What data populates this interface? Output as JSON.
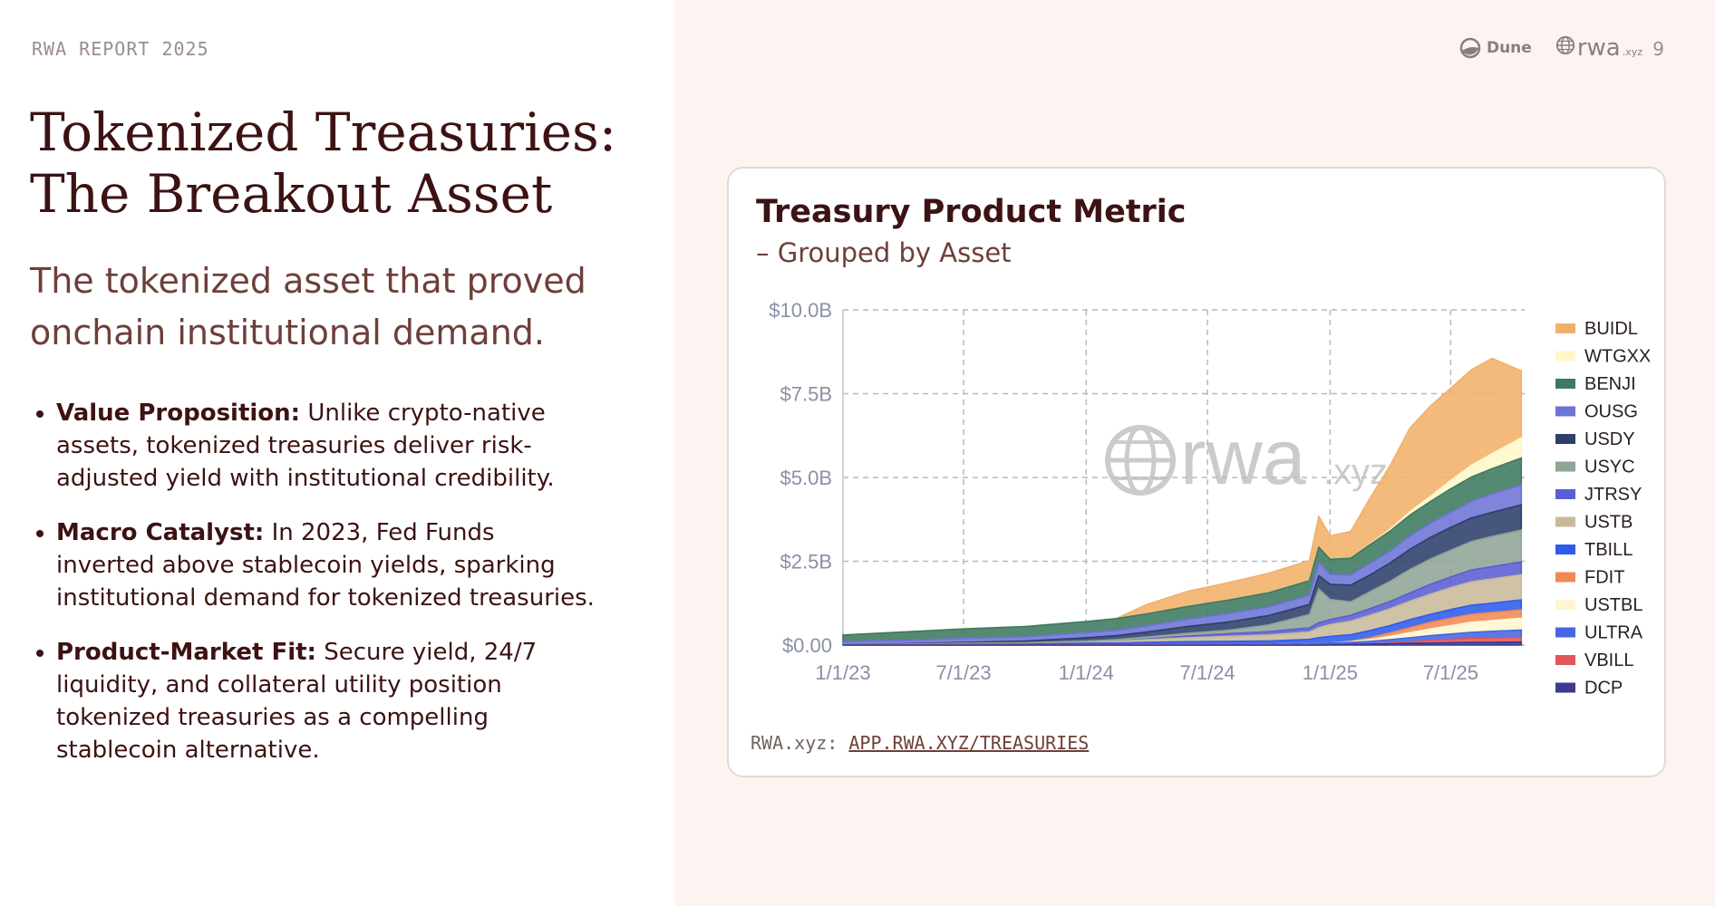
{
  "header": {
    "report_label": "RWA REPORT 2025",
    "page_number": "9",
    "dune_label": "Dune",
    "rwa_label": "rwa",
    "rwa_suffix": ".xyz"
  },
  "title_line1": "Tokenized Treasuries:",
  "title_line2": "The Breakout Asset",
  "subtitle": "The tokenized asset that proved onchain institutional demand.",
  "bullets": [
    {
      "bold": "Value Proposition:",
      "text": " Unlike crypto-native assets, tokenized treasuries deliver risk-adjusted yield with institutional credibility."
    },
    {
      "bold": "Macro Catalyst:",
      "text": " In 2023, Fed Funds inverted above stablecoin yields, sparking institutional demand for tokenized treasuries."
    },
    {
      "bold": "Product-Market Fit:",
      "text": " Secure yield, 24/7 liquidity, and collateral utility position tokenized treasuries as a compelling stablecoin alternative."
    }
  ],
  "source": {
    "prefix": "RWA.xyz:",
    "link_text": "APP.RWA.XYZ/TREASURIES"
  },
  "watermark": {
    "main": "rwa",
    "suffix": ".xyz"
  },
  "chart_data": {
    "type": "area",
    "stacked": true,
    "title": "Treasury Product Metric",
    "subtitle": "– Grouped by Asset",
    "xlabel": "",
    "ylabel": "",
    "x": [
      "2023-01-01",
      "2023-04-01",
      "2023-07-01",
      "2023-10-01",
      "2024-01-01",
      "2024-02-15",
      "2024-04-01",
      "2024-06-01",
      "2024-08-01",
      "2024-10-01",
      "2024-12-01",
      "2024-12-15",
      "2025-01-01",
      "2025-02-01",
      "2025-03-01",
      "2025-04-01",
      "2025-05-01",
      "2025-06-01",
      "2025-07-01",
      "2025-08-01",
      "2025-09-01",
      "2025-10-15"
    ],
    "xticks": [
      "1/1/23",
      "7/1/23",
      "1/1/24",
      "7/1/24",
      "1/1/25",
      "7/1/25"
    ],
    "yticks": [
      "$0.00",
      "$2.5B",
      "$5.0B",
      "$7.5B",
      "$10.0B"
    ],
    "ylim": [
      0,
      10
    ],
    "yunit": "$B",
    "grid": true,
    "legend_position": "right",
    "series": [
      {
        "name": "DCP",
        "color": "#3b3a8f",
        "values": [
          0,
          0,
          0,
          0,
          0,
          0,
          0,
          0,
          0,
          0,
          0,
          0,
          0.01,
          0.02,
          0.03,
          0.04,
          0.05,
          0.06,
          0.07,
          0.08,
          0.08,
          0.09
        ]
      },
      {
        "name": "VBILL",
        "color": "#e0565b",
        "values": [
          0,
          0,
          0,
          0,
          0,
          0,
          0,
          0,
          0,
          0,
          0,
          0,
          0,
          0,
          0,
          0.02,
          0.05,
          0.08,
          0.1,
          0.12,
          0.13,
          0.14
        ]
      },
      {
        "name": "ULTRA",
        "color": "#4466e6",
        "values": [
          0,
          0,
          0,
          0,
          0,
          0,
          0,
          0,
          0,
          0,
          0.03,
          0.04,
          0.05,
          0.06,
          0.08,
          0.1,
          0.12,
          0.14,
          0.16,
          0.18,
          0.2,
          0.22
        ]
      },
      {
        "name": "USTBL",
        "color": "#fff6cf",
        "values": [
          0,
          0,
          0,
          0,
          0,
          0,
          0,
          0,
          0,
          0,
          0,
          0,
          0,
          0.02,
          0.05,
          0.1,
          0.15,
          0.2,
          0.25,
          0.3,
          0.32,
          0.35
        ]
      },
      {
        "name": "FDIT",
        "color": "#f08a55",
        "values": [
          0,
          0,
          0,
          0,
          0,
          0,
          0,
          0,
          0,
          0,
          0,
          0,
          0,
          0.01,
          0.05,
          0.1,
          0.15,
          0.2,
          0.22,
          0.24,
          0.24,
          0.25
        ]
      },
      {
        "name": "TBILL",
        "color": "#2f5bea",
        "values": [
          0.01,
          0.01,
          0.02,
          0.03,
          0.05,
          0.06,
          0.08,
          0.1,
          0.11,
          0.12,
          0.14,
          0.18,
          0.2,
          0.2,
          0.22,
          0.22,
          0.24,
          0.24,
          0.26,
          0.27,
          0.28,
          0.3
        ]
      },
      {
        "name": "USTB",
        "color": "#c8b99a",
        "values": [
          0,
          0,
          0,
          0,
          0.02,
          0.05,
          0.08,
          0.12,
          0.15,
          0.18,
          0.22,
          0.3,
          0.35,
          0.4,
          0.45,
          0.5,
          0.55,
          0.6,
          0.65,
          0.7,
          0.72,
          0.75
        ]
      },
      {
        "name": "JTRSY",
        "color": "#5a5fd3",
        "values": [
          0,
          0,
          0,
          0,
          0,
          0,
          0.02,
          0.05,
          0.08,
          0.1,
          0.12,
          0.15,
          0.15,
          0.18,
          0.2,
          0.22,
          0.25,
          0.3,
          0.32,
          0.35,
          0.37,
          0.38
        ]
      },
      {
        "name": "USYC",
        "color": "#8fa596",
        "values": [
          0.01,
          0.02,
          0.03,
          0.04,
          0.05,
          0.05,
          0.06,
          0.08,
          0.1,
          0.2,
          0.4,
          1.0,
          0.6,
          0.4,
          0.5,
          0.6,
          0.7,
          0.75,
          0.8,
          0.85,
          0.9,
          0.95
        ]
      },
      {
        "name": "USDY",
        "color": "#2e3f6b",
        "values": [
          0,
          0.01,
          0.03,
          0.05,
          0.1,
          0.12,
          0.15,
          0.2,
          0.25,
          0.28,
          0.3,
          0.4,
          0.45,
          0.5,
          0.5,
          0.55,
          0.6,
          0.65,
          0.68,
          0.7,
          0.72,
          0.75
        ]
      },
      {
        "name": "OUSG",
        "color": "#6c74d6",
        "values": [
          0.08,
          0.1,
          0.12,
          0.13,
          0.15,
          0.16,
          0.18,
          0.22,
          0.25,
          0.26,
          0.28,
          0.4,
          0.3,
          0.3,
          0.35,
          0.35,
          0.4,
          0.42,
          0.45,
          0.5,
          0.55,
          0.6
        ]
      },
      {
        "name": "BENJI",
        "color": "#3d7a5f",
        "values": [
          0.2,
          0.25,
          0.28,
          0.3,
          0.33,
          0.35,
          0.36,
          0.38,
          0.4,
          0.42,
          0.43,
          0.45,
          0.45,
          0.5,
          0.55,
          0.6,
          0.62,
          0.65,
          0.7,
          0.72,
          0.75,
          0.8
        ]
      },
      {
        "name": "WTGXX",
        "color": "#fff7c9",
        "values": [
          0,
          0,
          0,
          0,
          0,
          0,
          0,
          0,
          0,
          0,
          0,
          0,
          0,
          0,
          0.02,
          0.05,
          0.1,
          0.15,
          0.25,
          0.35,
          0.45,
          0.6
        ]
      },
      {
        "name": "BUIDL",
        "color": "#f1b06a",
        "values": [
          0,
          0,
          0,
          0,
          0,
          0,
          0.28,
          0.45,
          0.52,
          0.58,
          0.6,
          0.92,
          0.7,
          0.8,
          1.35,
          1.9,
          2.5,
          2.7,
          2.75,
          2.85,
          2.84,
          2.0
        ]
      }
    ]
  }
}
